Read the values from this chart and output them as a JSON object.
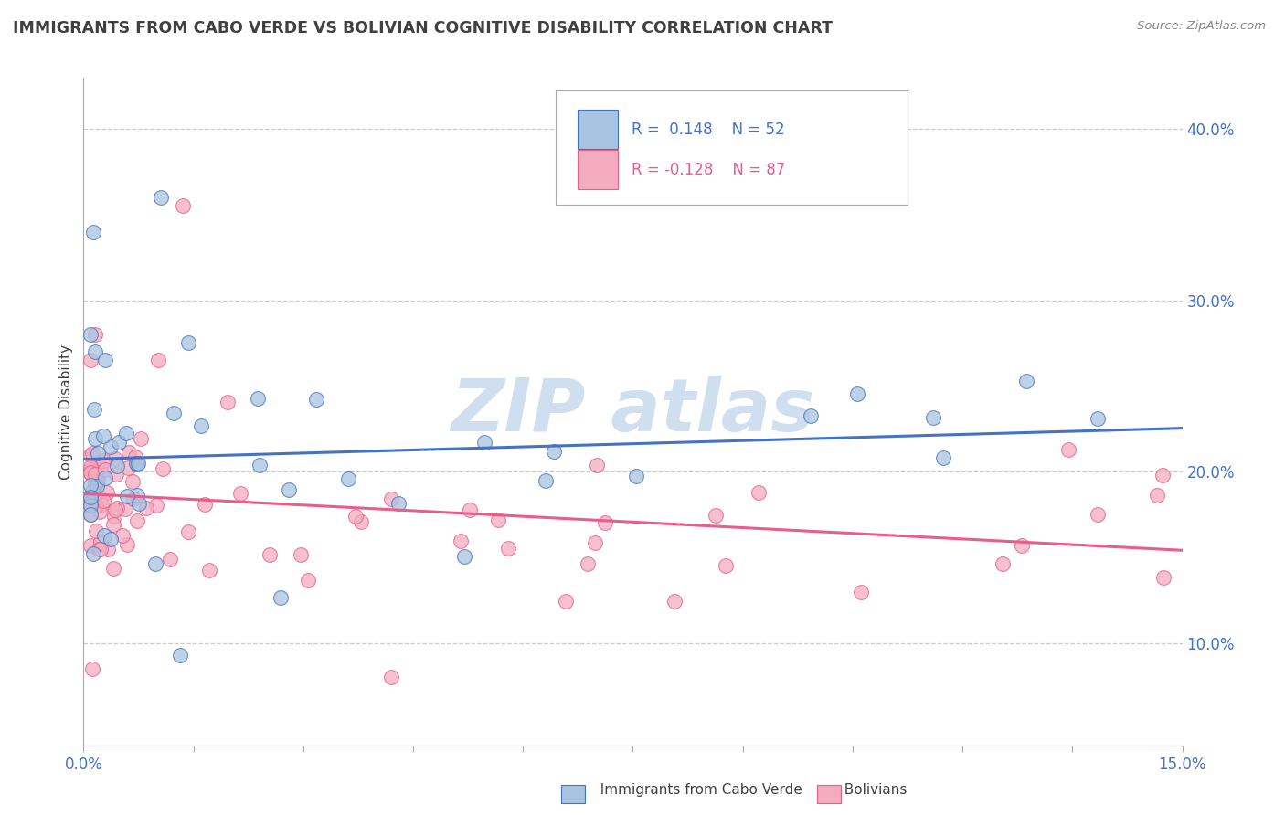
{
  "title": "IMMIGRANTS FROM CABO VERDE VS BOLIVIAN COGNITIVE DISABILITY CORRELATION CHART",
  "source_text": "Source: ZipAtlas.com",
  "ylabel": "Cognitive Disability",
  "xlim": [
    0.0,
    0.15
  ],
  "ylim": [
    0.04,
    0.43
  ],
  "yticks": [
    0.1,
    0.2,
    0.3,
    0.4
  ],
  "ytick_labels": [
    "10.0%",
    "20.0%",
    "30.0%",
    "40.0%"
  ],
  "xticks": [
    0.0,
    0.015,
    0.03,
    0.045,
    0.06,
    0.075,
    0.09,
    0.105,
    0.12,
    0.135,
    0.15
  ],
  "xtick_labels": [
    "0.0%",
    "",
    "",
    "",
    "",
    "",
    "",
    "",
    "",
    "",
    "15.0%"
  ],
  "color_blue": "#A8C4E0",
  "color_pink": "#F4ABBE",
  "color_blue_line": "#4472C4",
  "color_pink_line": "#E85D8A",
  "color_blue_dark": "#4472C4",
  "color_pink_dark": "#E85D8A",
  "background_color": "#FFFFFF",
  "title_color": "#404040",
  "axis_color": "#404040",
  "grid_color": "#CCCCCC",
  "watermark_color": "#D0DFF0",
  "tick_color": "#4472C4",
  "legend_r1_text": "R =  0.148",
  "legend_n1_text": "N = 52",
  "legend_r2_text": "R = -0.128",
  "legend_n2_text": "N = 87"
}
